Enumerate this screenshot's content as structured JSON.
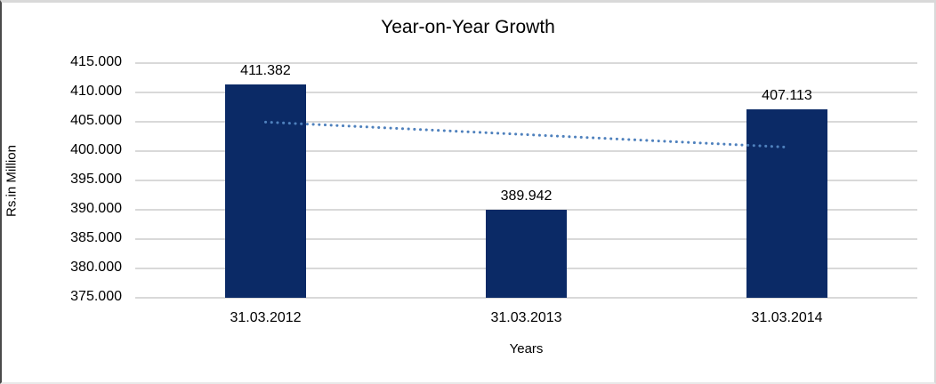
{
  "frame": {
    "background": "#ffffff",
    "border_color": "#d9d9d9"
  },
  "chart_data": {
    "type": "bar",
    "title": "Year-on-Year Growth",
    "xlabel": "Years",
    "ylabel": "Rs.in Million",
    "categories": [
      "31.03.2012",
      "31.03.2013",
      "31.03.2014"
    ],
    "values": [
      411.382,
      389.942,
      407.113
    ],
    "data_labels": [
      "411.382",
      "389.942",
      "407.113"
    ],
    "ylim": [
      375,
      415
    ],
    "ytick_step": 5,
    "ytick_labels": [
      "375.000",
      "380.000",
      "385.000",
      "390.000",
      "395.000",
      "400.000",
      "405.000",
      "410.000",
      "415.000"
    ],
    "grid": true,
    "legend": "none",
    "bar_color": "#0B2A66",
    "gridline_color": "#D9D9D9",
    "text_color": "#000000",
    "trendline": {
      "style": "dotted",
      "color": "#4F81BD",
      "start_value": 404.95,
      "end_value": 400.68
    }
  }
}
